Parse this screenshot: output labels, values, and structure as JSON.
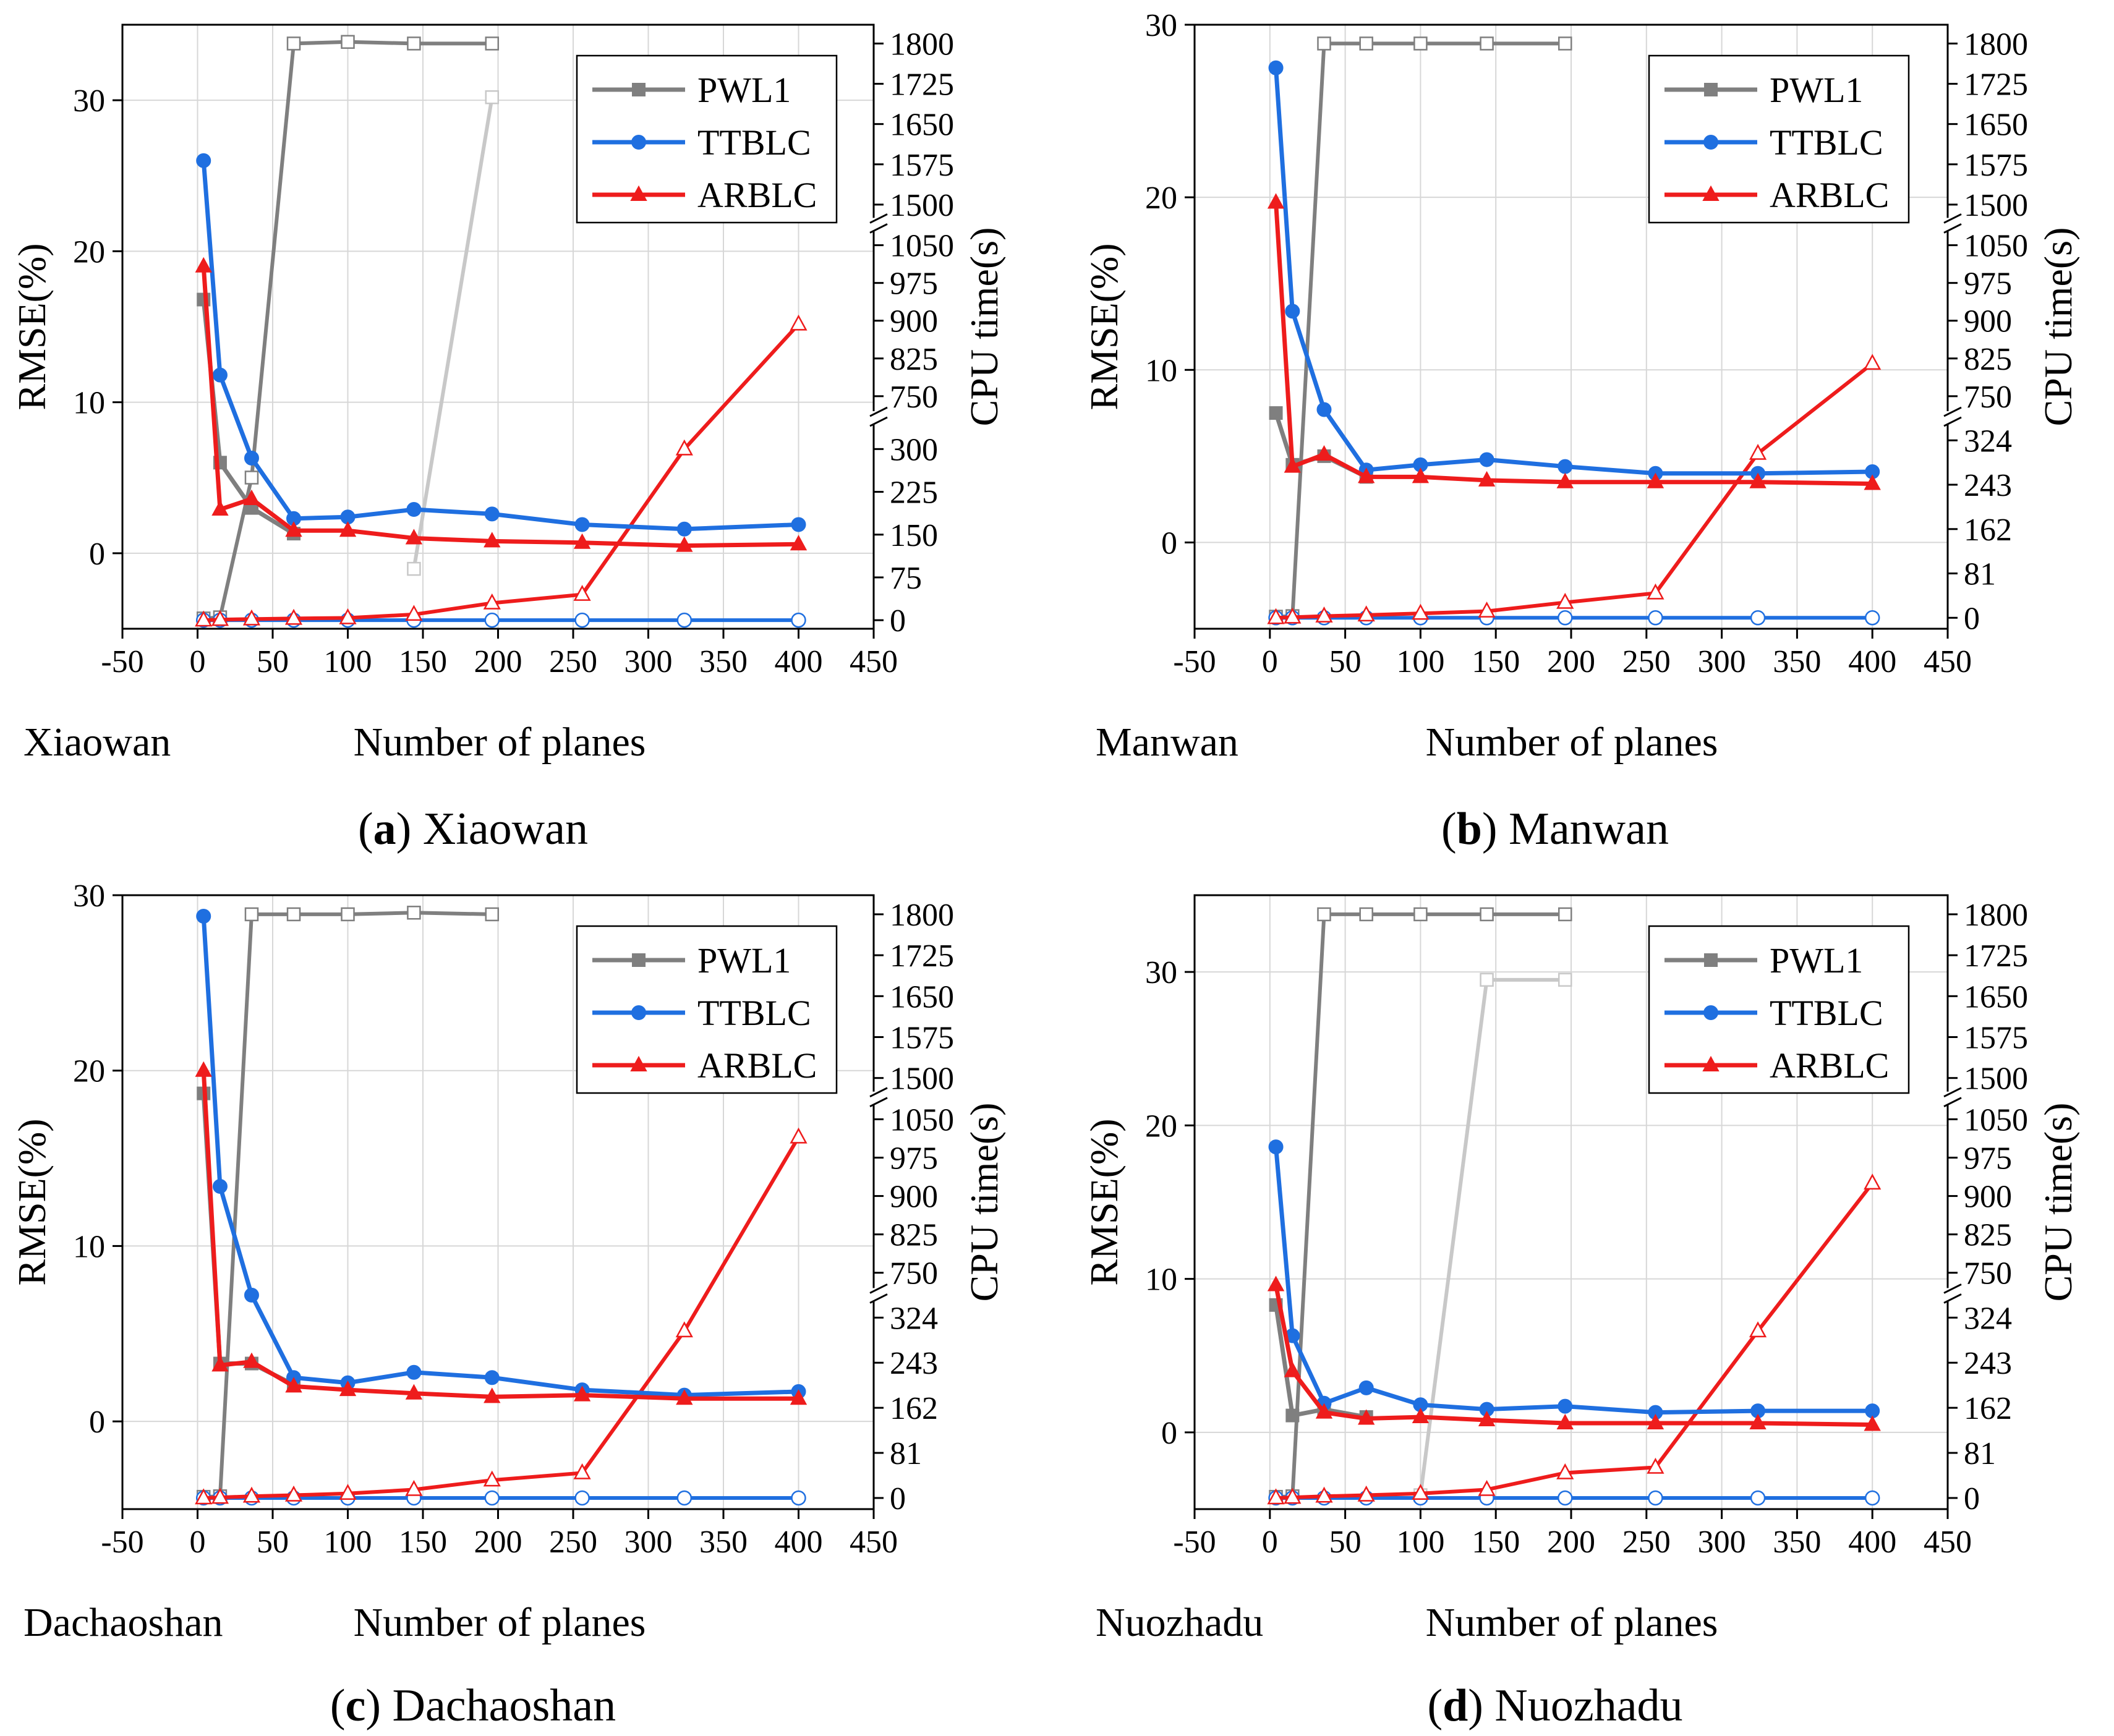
{
  "figure": {
    "panels": [
      {
        "letter": "a",
        "caption": " Xiaowan"
      },
      {
        "letter": "b",
        "caption": " Manwan"
      },
      {
        "letter": "c",
        "caption": " Dachaoshan"
      },
      {
        "letter": "d",
        "caption": " Nuozhadu"
      }
    ]
  },
  "colors": {
    "pwl1": "#7f7f7f",
    "pwl1_light": "#c8c8c8",
    "ttblc": "#1f6fe0",
    "arblc": "#ee1c1c",
    "grid": "#d7d7d7"
  },
  "chart_data": [
    {
      "type": "line",
      "station": "Xiaowan",
      "xlabel": "Number of planes",
      "ylabel_left": "RMSE(%)",
      "ylabel_right": "CPU time(s)",
      "xlim": [
        -50,
        450
      ],
      "x_ticks": [
        -50,
        0,
        50,
        100,
        150,
        200,
        250,
        300,
        350,
        400,
        450
      ],
      "ylim_left": [
        -5,
        35
      ],
      "y_ticks_left": [
        0,
        10,
        20,
        30
      ],
      "right_axis_segments": [
        {
          "ticks": [
            0,
            75,
            150,
            225,
            300
          ],
          "range": [
            -15,
            345
          ]
        },
        {
          "ticks": [
            750,
            825,
            900,
            975,
            1050
          ],
          "range": [
            720,
            1080
          ]
        },
        {
          "ticks": [
            1500,
            1575,
            1650,
            1725,
            1800
          ],
          "range": [
            1475,
            1835
          ]
        }
      ],
      "legend": [
        "PWL1",
        "TTBLC",
        "ARBLC"
      ],
      "rmse_series": [
        {
          "name": "PWL1",
          "x": [
            4,
            15,
            36,
            64
          ],
          "values": [
            16.8,
            6.0,
            3.0,
            1.3
          ]
        },
        {
          "name": "TTBLC",
          "x": [
            4,
            15,
            36,
            64,
            100,
            144,
            196,
            256,
            324,
            400
          ],
          "values": [
            26.0,
            11.8,
            6.3,
            2.3,
            2.4,
            2.9,
            2.6,
            1.9,
            1.6,
            1.9
          ]
        },
        {
          "name": "ARBLC",
          "x": [
            4,
            15,
            36,
            64,
            100,
            144,
            196,
            256,
            324,
            400
          ],
          "values": [
            19.0,
            2.9,
            3.6,
            1.5,
            1.5,
            1.0,
            0.8,
            0.7,
            0.5,
            0.6
          ]
        }
      ],
      "cpu_series": [
        {
          "name": "PWL1",
          "x": [
            4,
            15,
            36,
            64,
            100,
            144,
            196
          ],
          "values": [
            3,
            5,
            250,
            1800,
            1803,
            1800,
            1800
          ]
        },
        {
          "name": "PWL1 (incomplete)",
          "x": [
            144,
            196
          ],
          "values": [
            90,
            1700
          ]
        },
        {
          "name": "TTBLC",
          "x": [
            4,
            15,
            36,
            64,
            100,
            144,
            196,
            256,
            324,
            400
          ],
          "values": [
            0,
            0,
            0,
            0,
            0,
            0,
            0,
            0,
            0,
            0
          ]
        },
        {
          "name": "ARBLC",
          "x": [
            4,
            15,
            36,
            64,
            100,
            144,
            196,
            256,
            324,
            400
          ],
          "values": [
            0,
            1,
            2,
            3,
            4,
            10,
            30,
            45,
            300,
            893
          ]
        }
      ]
    },
    {
      "type": "line",
      "station": "Manwan",
      "xlabel": "Number of planes",
      "ylabel_left": "RMSE(%)",
      "ylabel_right": "CPU time(s)",
      "xlim": [
        -50,
        450
      ],
      "x_ticks": [
        -50,
        0,
        50,
        100,
        150,
        200,
        250,
        300,
        350,
        400,
        450
      ],
      "ylim_left": [
        -5,
        30
      ],
      "y_ticks_left": [
        0,
        10,
        20,
        30
      ],
      "right_axis_segments": [
        {
          "ticks": [
            0,
            81,
            162,
            243,
            324
          ],
          "range": [
            -20,
            355
          ]
        },
        {
          "ticks": [
            750,
            825,
            900,
            975,
            1050
          ],
          "range": [
            720,
            1080
          ]
        },
        {
          "ticks": [
            1500,
            1575,
            1650,
            1725,
            1800
          ],
          "range": [
            1475,
            1835
          ]
        }
      ],
      "legend": [
        "PWL1",
        "TTBLC",
        "ARBLC"
      ],
      "rmse_series": [
        {
          "name": "PWL1",
          "x": [
            4,
            15,
            36,
            64
          ],
          "values": [
            7.5,
            4.5,
            5.0,
            3.8
          ]
        },
        {
          "name": "TTBLC",
          "x": [
            4,
            15,
            36,
            64,
            100,
            144,
            196,
            256,
            324,
            400
          ],
          "values": [
            27.5,
            13.4,
            7.7,
            4.2,
            4.5,
            4.8,
            4.4,
            4.0,
            4.0,
            4.1
          ]
        },
        {
          "name": "ARBLC",
          "x": [
            4,
            15,
            36,
            64,
            100,
            144,
            196,
            256,
            324,
            400
          ],
          "values": [
            19.7,
            4.4,
            5.1,
            3.8,
            3.8,
            3.6,
            3.5,
            3.5,
            3.5,
            3.4
          ]
        }
      ],
      "cpu_series": [
        {
          "name": "PWL1",
          "x": [
            4,
            15,
            36,
            64,
            100,
            144,
            196
          ],
          "values": [
            2,
            3,
            1800,
            1800,
            1800,
            1800,
            1800
          ]
        },
        {
          "name": "TTBLC",
          "x": [
            4,
            15,
            36,
            64,
            100,
            144,
            196,
            256,
            324,
            400
          ],
          "values": [
            0,
            0,
            0,
            0,
            0,
            0,
            0,
            0,
            0,
            0
          ]
        },
        {
          "name": "ARBLC",
          "x": [
            4,
            15,
            36,
            64,
            100,
            144,
            196,
            256,
            324,
            400
          ],
          "values": [
            0,
            1,
            3,
            5,
            8,
            12,
            28,
            45,
            300,
            815
          ]
        }
      ]
    },
    {
      "type": "line",
      "station": "Dachaoshan",
      "xlabel": "Number of planes",
      "ylabel_left": "RMSE(%)",
      "ylabel_right": "CPU time(s)",
      "xlim": [
        -50,
        450
      ],
      "x_ticks": [
        -50,
        0,
        50,
        100,
        150,
        200,
        250,
        300,
        350,
        400,
        450
      ],
      "ylim_left": [
        -5,
        30
      ],
      "y_ticks_left": [
        0,
        10,
        20,
        30
      ],
      "right_axis_segments": [
        {
          "ticks": [
            0,
            81,
            162,
            243,
            324
          ],
          "range": [
            -20,
            355
          ]
        },
        {
          "ticks": [
            750,
            825,
            900,
            975,
            1050
          ],
          "range": [
            720,
            1080
          ]
        },
        {
          "ticks": [
            1500,
            1575,
            1650,
            1725,
            1800
          ],
          "range": [
            1475,
            1835
          ]
        }
      ],
      "legend": [
        "PWL1",
        "TTBLC",
        "ARBLC"
      ],
      "rmse_series": [
        {
          "name": "PWL1",
          "x": [
            4,
            15,
            36,
            64
          ],
          "values": [
            18.7,
            3.3,
            3.3,
            2.1
          ]
        },
        {
          "name": "TTBLC",
          "x": [
            4,
            15,
            36,
            64,
            100,
            144,
            196,
            256,
            324,
            400
          ],
          "values": [
            28.8,
            13.4,
            7.2,
            2.5,
            2.2,
            2.8,
            2.5,
            1.8,
            1.5,
            1.7
          ]
        },
        {
          "name": "ARBLC",
          "x": [
            4,
            15,
            36,
            64,
            100,
            144,
            196,
            256,
            324,
            400
          ],
          "values": [
            20.0,
            3.2,
            3.4,
            2.0,
            1.8,
            1.6,
            1.4,
            1.5,
            1.3,
            1.3
          ]
        }
      ],
      "cpu_series": [
        {
          "name": "PWL1",
          "x": [
            4,
            15,
            36,
            64,
            100,
            144,
            196
          ],
          "values": [
            2,
            3,
            1800,
            1800,
            1800,
            1803,
            1800
          ]
        },
        {
          "name": "TTBLC",
          "x": [
            4,
            15,
            36,
            64,
            100,
            144,
            196,
            256,
            324,
            400
          ],
          "values": [
            0,
            0,
            0,
            0,
            0,
            0,
            0,
            0,
            0,
            0
          ]
        },
        {
          "name": "ARBLC",
          "x": [
            4,
            15,
            36,
            64,
            100,
            144,
            196,
            256,
            324,
            400
          ],
          "values": [
            0,
            1,
            3,
            5,
            8,
            15,
            32,
            45,
            300,
            1015
          ]
        }
      ]
    },
    {
      "type": "line",
      "station": "Nuozhadu",
      "xlabel": "Number of planes",
      "ylabel_left": "RMSE(%)",
      "ylabel_right": "CPU time(s)",
      "xlim": [
        -50,
        450
      ],
      "x_ticks": [
        -50,
        0,
        50,
        100,
        150,
        200,
        250,
        300,
        350,
        400,
        450
      ],
      "ylim_left": [
        -5,
        35
      ],
      "y_ticks_left": [
        0,
        10,
        20,
        30
      ],
      "right_axis_segments": [
        {
          "ticks": [
            0,
            81,
            162,
            243,
            324
          ],
          "range": [
            -20,
            355
          ]
        },
        {
          "ticks": [
            750,
            825,
            900,
            975,
            1050
          ],
          "range": [
            720,
            1080
          ]
        },
        {
          "ticks": [
            1500,
            1575,
            1650,
            1725,
            1800
          ],
          "range": [
            1475,
            1835
          ]
        }
      ],
      "legend": [
        "PWL1",
        "TTBLC",
        "ARBLC"
      ],
      "rmse_series": [
        {
          "name": "PWL1",
          "x": [
            4,
            15,
            36,
            64
          ],
          "values": [
            8.3,
            1.1,
            1.5,
            1.0
          ]
        },
        {
          "name": "TTBLC",
          "x": [
            4,
            15,
            36,
            64,
            100,
            144,
            196,
            256,
            324,
            400
          ],
          "values": [
            18.6,
            6.3,
            1.9,
            2.9,
            1.8,
            1.5,
            1.7,
            1.3,
            1.4,
            1.4
          ]
        },
        {
          "name": "ARBLC",
          "x": [
            4,
            15,
            36,
            64,
            100,
            144,
            196,
            256,
            324,
            400
          ],
          "values": [
            9.6,
            4.0,
            1.3,
            0.9,
            1.0,
            0.8,
            0.6,
            0.6,
            0.6,
            0.5
          ]
        }
      ],
      "cpu_series": [
        {
          "name": "PWL1",
          "x": [
            4,
            15,
            36,
            64,
            100,
            144,
            196
          ],
          "values": [
            2,
            3,
            1800,
            1800,
            1800,
            1800,
            1800
          ]
        },
        {
          "name": "PWL1 (incomplete)",
          "x": [
            100,
            144,
            196
          ],
          "values": [
            5,
            1680,
            1680
          ]
        },
        {
          "name": "TTBLC",
          "x": [
            4,
            15,
            36,
            64,
            100,
            144,
            196,
            256,
            324,
            400
          ],
          "values": [
            0,
            0,
            0,
            0,
            0,
            0,
            0,
            0,
            0,
            0
          ]
        },
        {
          "name": "ARBLC",
          "x": [
            4,
            15,
            36,
            64,
            100,
            144,
            196,
            256,
            324,
            400
          ],
          "values": [
            0,
            1,
            3,
            5,
            8,
            15,
            45,
            55,
            300,
            925
          ]
        }
      ]
    }
  ]
}
